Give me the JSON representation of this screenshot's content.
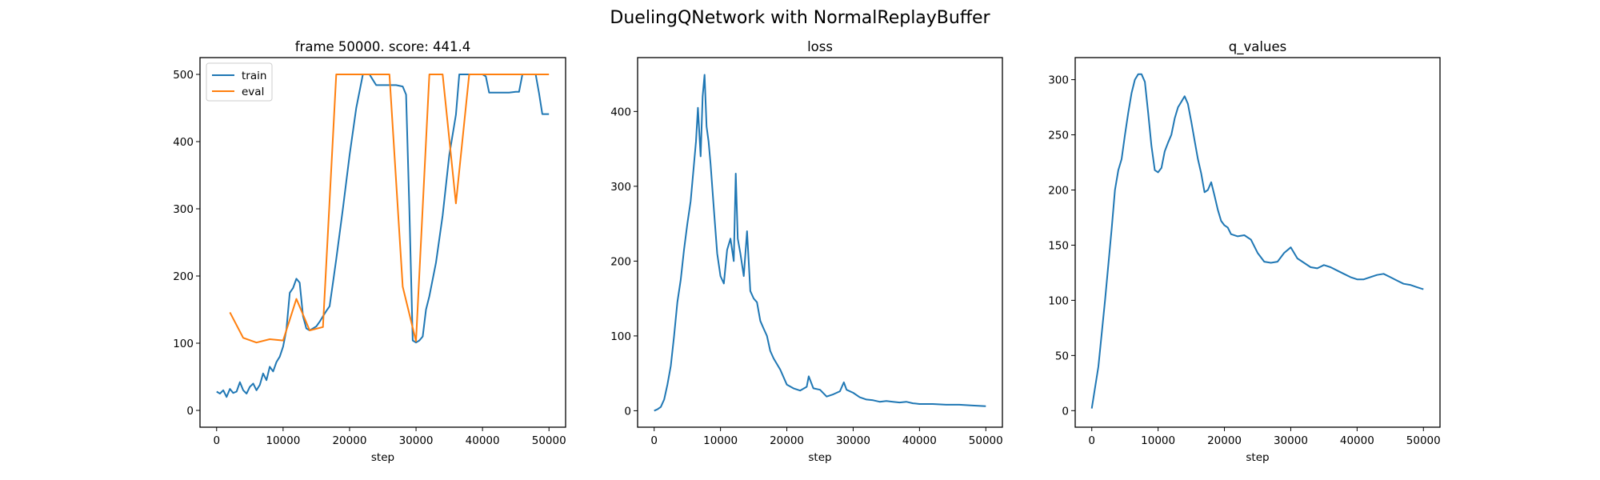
{
  "figure": {
    "suptitle": "DuelingQNetwork with NormalReplayBuffer",
    "colors": {
      "train": "#1f77b4",
      "eval": "#ff7f0e",
      "axis": "#000000"
    }
  },
  "chart_data": [
    {
      "type": "line",
      "title": "frame 50000. score: 441.4",
      "xlabel": "step",
      "ylabel": "",
      "xlim": [
        -2500,
        52500
      ],
      "ylim": [
        -25,
        525
      ],
      "xticks": [
        0,
        10000,
        20000,
        30000,
        40000,
        50000
      ],
      "yticks": [
        0,
        100,
        200,
        300,
        400,
        500
      ],
      "legend": {
        "position": "upper left",
        "entries": [
          "train",
          "eval"
        ]
      },
      "grid": false,
      "series": [
        {
          "name": "train",
          "color": "#1f77b4",
          "x": [
            0,
            500,
            1000,
            1500,
            2000,
            2500,
            3000,
            3500,
            4000,
            4500,
            5000,
            5500,
            6000,
            6500,
            7000,
            7500,
            8000,
            8500,
            9000,
            9500,
            10000,
            10500,
            11000,
            11500,
            12000,
            12500,
            13000,
            13500,
            14000,
            14500,
            15000,
            15500,
            16000,
            16500,
            17000,
            17500,
            18000,
            19000,
            20000,
            21000,
            22000,
            23000,
            23500,
            24000,
            24500,
            25000,
            26000,
            27000,
            28000,
            28500,
            29000,
            29500,
            30000,
            30500,
            31000,
            31500,
            32000,
            33000,
            34000,
            35000,
            36000,
            36500,
            37000,
            38000,
            39000,
            40000,
            40500,
            41000,
            42000,
            43000,
            44000,
            45000,
            45500,
            46000,
            47000,
            48000,
            48500,
            49000,
            50000
          ],
          "values": [
            28,
            25,
            30,
            20,
            32,
            26,
            28,
            42,
            30,
            25,
            35,
            40,
            30,
            38,
            55,
            45,
            65,
            58,
            72,
            80,
            95,
            120,
            175,
            182,
            196,
            190,
            140,
            122,
            119,
            122,
            125,
            132,
            140,
            148,
            155,
            190,
            225,
            300,
            380,
            450,
            500,
            500,
            492,
            484,
            484,
            484,
            484,
            484,
            482,
            470,
            300,
            104,
            101,
            104,
            110,
            150,
            170,
            220,
            290,
            380,
            440,
            500,
            500,
            500,
            500,
            500,
            497,
            473,
            473,
            473,
            473,
            474,
            474,
            500,
            500,
            500,
            472,
            441,
            441
          ]
        },
        {
          "name": "eval",
          "color": "#ff7f0e",
          "x": [
            2000,
            4000,
            6000,
            8000,
            10000,
            12000,
            14000,
            16000,
            18000,
            20000,
            22000,
            24000,
            26000,
            28000,
            30000,
            32000,
            34000,
            36000,
            38000,
            40000,
            42000,
            44000,
            46000,
            48000,
            50000
          ],
          "values": [
            146,
            108,
            101,
            106,
            104,
            166,
            119,
            124,
            500,
            500,
            500,
            500,
            500,
            184,
            103,
            500,
            500,
            308,
            500,
            500,
            500,
            500,
            500,
            500,
            500
          ]
        }
      ]
    },
    {
      "type": "line",
      "title": "loss",
      "xlabel": "step",
      "ylabel": "",
      "xlim": [
        -2500,
        52500
      ],
      "ylim": [
        -22,
        472
      ],
      "xticks": [
        0,
        10000,
        20000,
        30000,
        40000,
        50000
      ],
      "yticks": [
        0,
        100,
        200,
        300,
        400
      ],
      "grid": false,
      "series": [
        {
          "name": "loss",
          "color": "#1f77b4",
          "x": [
            0,
            500,
            1000,
            1500,
            2000,
            2500,
            3000,
            3500,
            4000,
            4500,
            5000,
            5500,
            6000,
            6300,
            6600,
            7000,
            7300,
            7600,
            7900,
            8200,
            8500,
            9000,
            9500,
            10000,
            10500,
            11000,
            11500,
            12000,
            12300,
            12600,
            13000,
            13500,
            14000,
            14500,
            15000,
            15500,
            16000,
            16500,
            17000,
            17500,
            18000,
            19000,
            20000,
            21000,
            22000,
            23000,
            23300,
            24000,
            25000,
            26000,
            27000,
            28000,
            28600,
            29000,
            30000,
            31000,
            32000,
            33000,
            34000,
            35000,
            36000,
            37000,
            38000,
            39000,
            40000,
            42000,
            44000,
            46000,
            48000,
            50000
          ],
          "values": [
            0,
            2,
            5,
            15,
            35,
            60,
            100,
            145,
            175,
            215,
            250,
            280,
            330,
            360,
            405,
            340,
            420,
            449,
            380,
            360,
            330,
            270,
            210,
            180,
            170,
            215,
            230,
            200,
            317,
            230,
            210,
            180,
            240,
            160,
            150,
            145,
            120,
            110,
            100,
            80,
            70,
            55,
            35,
            30,
            27,
            32,
            46,
            30,
            28,
            19,
            22,
            26,
            38,
            28,
            24,
            18,
            15,
            14,
            12,
            13,
            12,
            11,
            12,
            10,
            9,
            9,
            8,
            8,
            7,
            6
          ]
        }
      ]
    },
    {
      "type": "line",
      "title": "q_values",
      "xlabel": "step",
      "ylabel": "",
      "xlim": [
        -2500,
        52500
      ],
      "ylim": [
        -15,
        320
      ],
      "xticks": [
        0,
        10000,
        20000,
        30000,
        40000,
        50000
      ],
      "yticks": [
        0,
        50,
        100,
        150,
        200,
        250,
        300
      ],
      "grid": false,
      "series": [
        {
          "name": "q_values",
          "color": "#1f77b4",
          "x": [
            0,
            1000,
            2000,
            3000,
            3500,
            4000,
            4500,
            5000,
            5500,
            6000,
            6500,
            7000,
            7500,
            8000,
            8500,
            9000,
            9500,
            10000,
            10500,
            11000,
            11500,
            12000,
            12500,
            13000,
            13500,
            14000,
            14500,
            15000,
            15500,
            16000,
            16500,
            17000,
            17500,
            18000,
            18500,
            19000,
            19500,
            20000,
            20500,
            21000,
            22000,
            23000,
            24000,
            25000,
            26000,
            27000,
            28000,
            29000,
            30000,
            31000,
            32000,
            33000,
            34000,
            35000,
            36000,
            37000,
            38000,
            39000,
            40000,
            41000,
            42000,
            43000,
            44000,
            45000,
            46000,
            47000,
            48000,
            49000,
            50000
          ],
          "values": [
            2,
            40,
            100,
            165,
            200,
            218,
            228,
            250,
            270,
            288,
            300,
            305,
            305,
            298,
            270,
            240,
            218,
            216,
            220,
            235,
            243,
            250,
            265,
            275,
            280,
            285,
            278,
            262,
            245,
            228,
            215,
            198,
            200,
            207,
            195,
            182,
            172,
            168,
            166,
            160,
            158,
            159,
            155,
            143,
            135,
            134,
            135,
            143,
            148,
            138,
            134,
            130,
            129,
            132,
            130,
            127,
            124,
            121,
            119,
            119,
            121,
            123,
            124,
            121,
            118,
            115,
            114,
            112,
            110
          ]
        }
      ]
    }
  ]
}
